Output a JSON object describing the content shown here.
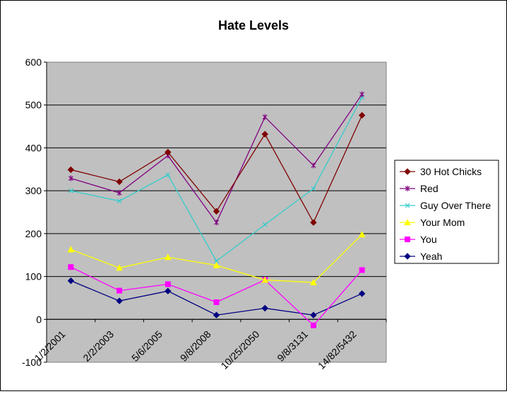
{
  "chart_data": {
    "type": "line",
    "title": "Hate Levels",
    "xlabel": "",
    "ylabel": "",
    "categories": [
      "1/2/2001",
      "2/2/2003",
      "5/6/2005",
      "9/8/2008",
      "10/25/2050",
      "9/8/3131",
      "14/82/5432"
    ],
    "ylim": [
      -100,
      600
    ],
    "yticks": [
      -100,
      0,
      100,
      200,
      300,
      400,
      500,
      600
    ],
    "grid": true,
    "legend_position": "right",
    "plot_background": "#c0c0c0",
    "series": [
      {
        "name": "30 Hot Chicks",
        "color": "#800000",
        "marker": "diamond",
        "values": [
          349,
          321,
          390,
          252,
          432,
          226,
          476
        ]
      },
      {
        "name": "Red",
        "color": "#800080",
        "marker": "star",
        "values": [
          329,
          295,
          382,
          226,
          472,
          359,
          525
        ]
      },
      {
        "name": "Guy Over There",
        "color": "#33cccc",
        "marker": "x",
        "values": [
          300,
          276,
          337,
          136,
          221,
          305,
          518
        ]
      },
      {
        "name": "Your Mom",
        "color": "#ffff00",
        "marker": "triangle",
        "values": [
          163,
          120,
          145,
          126,
          92,
          86,
          198
        ]
      },
      {
        "name": "You",
        "color": "#ff00ff",
        "marker": "square",
        "values": [
          122,
          67,
          82,
          40,
          92,
          -14,
          115
        ]
      },
      {
        "name": "Yeah",
        "color": "#000080",
        "marker": "diamond",
        "values": [
          90,
          43,
          66,
          10,
          26,
          10,
          60
        ]
      }
    ]
  }
}
